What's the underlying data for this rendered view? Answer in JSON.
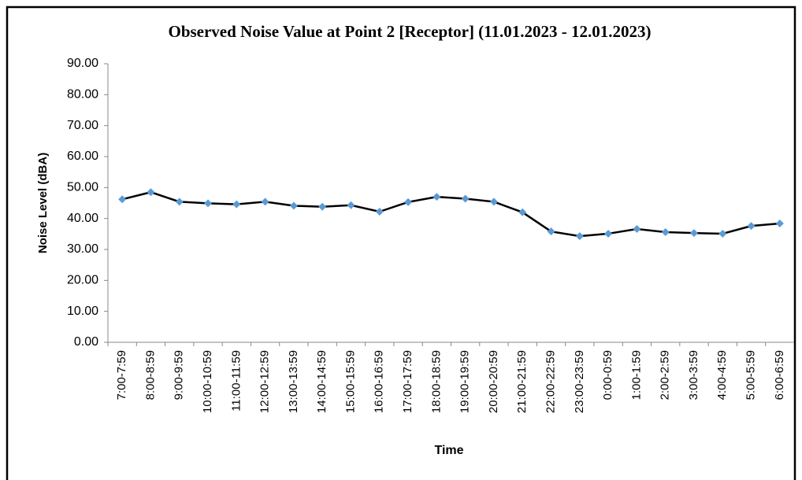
{
  "chart_data": {
    "type": "line",
    "title": "Observed Noise Value at Point 2 [Receptor]  (11.01.2023 - 12.01.2023)",
    "x_label": "Time",
    "y_label": "Noise Level (dBA)",
    "categories": [
      "7:00-7:59",
      "8:00-8:59",
      "9:00-9:59",
      "10:00-10:59",
      "11:00-11:59",
      "12:00-12:59",
      "13:00-13:59",
      "14:00-14:59",
      "15:00-15:59",
      "16:00-16:59",
      "17:00-17:59",
      "18:00-18:59",
      "19:00-19:59",
      "20:00-20:59",
      "21:00-21:59",
      "22:00-22:59",
      "23:00-23:59",
      "0:00-0:59",
      "1:00-1:59",
      "2:00-2:59",
      "3:00-3:59",
      "4:00-4:59",
      "5:00-5:59",
      "6:00-6:59"
    ],
    "series": [
      {
        "name": "Noise Level",
        "color": "#000000",
        "marker_color": "#5b9bd5",
        "values": [
          46.2,
          48.5,
          45.4,
          44.9,
          44.6,
          45.4,
          44.1,
          43.8,
          44.3,
          42.2,
          45.3,
          47.0,
          46.4,
          45.4,
          42.0,
          35.8,
          34.3,
          35.1,
          36.6,
          35.6,
          35.3,
          35.1,
          37.6,
          38.4
        ]
      }
    ],
    "ylim": [
      0,
      90
    ],
    "yticks": [
      {
        "value": 0,
        "label": "0.00"
      },
      {
        "value": 10,
        "label": "10.00"
      },
      {
        "value": 20,
        "label": "20.00"
      },
      {
        "value": 30,
        "label": "30.00"
      },
      {
        "value": 40,
        "label": "40.00"
      },
      {
        "value": 50,
        "label": "50.00"
      },
      {
        "value": 60,
        "label": "60.00"
      },
      {
        "value": 70,
        "label": "70.00"
      },
      {
        "value": 80,
        "label": "80.00"
      },
      {
        "value": 90,
        "label": "90.00"
      }
    ],
    "grid": false
  }
}
